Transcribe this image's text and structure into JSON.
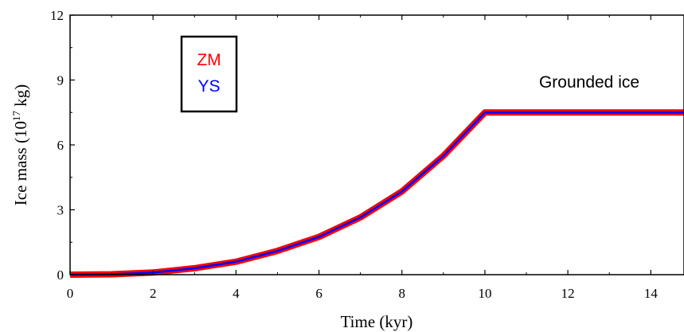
{
  "chart_data": {
    "type": "line",
    "xlabel": "Time (kyr)",
    "ylabel_main": "Ice mass (10",
    "ylabel_sup": "17",
    "ylabel_end": " kg)",
    "xlim": [
      0,
      14.8
    ],
    "ylim": [
      0,
      12
    ],
    "xticks": [
      "0",
      "2",
      "4",
      "6",
      "8",
      "10",
      "12",
      "14"
    ],
    "yticks": [
      "0",
      "3",
      "6",
      "9",
      "12"
    ],
    "annotation": "Grounded ice",
    "grid": false,
    "legend_position": "top-left",
    "series": [
      {
        "name": "ZM",
        "color": "#ff0000",
        "x": [
          0,
          1,
          2,
          3,
          4,
          5,
          6,
          7,
          8,
          9,
          10,
          11,
          12,
          13,
          14,
          14.8
        ],
        "y": [
          0,
          0.02,
          0.1,
          0.3,
          0.6,
          1.1,
          1.75,
          2.65,
          3.85,
          5.5,
          7.5,
          7.5,
          7.5,
          7.5,
          7.5,
          7.5
        ]
      },
      {
        "name": "YS",
        "color": "#0000ff",
        "x": [
          0,
          1,
          2,
          3,
          4,
          5,
          6,
          7,
          8,
          9,
          10,
          11,
          12,
          13,
          14,
          14.8
        ],
        "y": [
          0,
          0.02,
          0.1,
          0.3,
          0.6,
          1.1,
          1.75,
          2.65,
          3.85,
          5.5,
          7.5,
          7.5,
          7.5,
          7.5,
          7.5,
          7.5
        ]
      }
    ]
  }
}
